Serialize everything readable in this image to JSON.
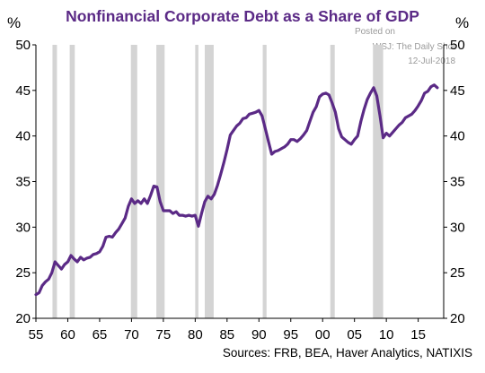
{
  "title": "Nonfinancial Corporate Debt  as a Share of GDP",
  "unit_left": "%",
  "unit_right": "%",
  "watermark": {
    "posted_on": "Posted on",
    "site": "WSJ: The Daily Shot",
    "date": "12-Jul-2018"
  },
  "source": "Sources: FRB, BEA, Haver Analytics, NATIXIS",
  "colors": {
    "line": "#5b2a86",
    "recession": "#d4d4d4",
    "title": "#5b2a86"
  },
  "chart_data": {
    "type": "line",
    "title": "Nonfinancial Corporate Debt  as a Share of GDP",
    "xlabel": "",
    "ylabel": "%",
    "xlim": [
      1955,
      2019
    ],
    "ylim": [
      20,
      50
    ],
    "x_ticks": [
      1955,
      1960,
      1965,
      1970,
      1975,
      1980,
      1985,
      1990,
      1995,
      2000,
      2005,
      2010,
      2015
    ],
    "x_tick_labels": [
      "55",
      "60",
      "65",
      "70",
      "75",
      "80",
      "85",
      "90",
      "95",
      "00",
      "05",
      "10",
      "15"
    ],
    "y_ticks": [
      20,
      25,
      30,
      35,
      40,
      45,
      50
    ],
    "y_tick_labels_left": [
      "20",
      "25",
      "30",
      "35",
      "40",
      "45",
      "50"
    ],
    "y_tick_labels_right": [
      "20",
      "25",
      "30",
      "35",
      "40",
      "45",
      "50"
    ],
    "grid": false,
    "recessions": [
      [
        1957.6,
        1958.3
      ],
      [
        1960.3,
        1961.1
      ],
      [
        1969.9,
        1970.9
      ],
      [
        1973.9,
        1975.2
      ],
      [
        1980.0,
        1980.5
      ],
      [
        1981.5,
        1982.9
      ],
      [
        1990.6,
        1991.2
      ],
      [
        2001.2,
        2001.9
      ],
      [
        2007.9,
        2009.5
      ]
    ],
    "series": [
      {
        "x": [
          1955.0,
          1955.5,
          1956.0,
          1956.5,
          1957.0,
          1957.5,
          1958.0,
          1958.5,
          1959.0,
          1959.5,
          1960.0,
          1960.5,
          1961.0,
          1961.5,
          1962.0,
          1962.5,
          1963.0,
          1963.5,
          1964.0,
          1964.5,
          1965.0,
          1965.5,
          1966.0,
          1966.5,
          1967.0,
          1967.5,
          1968.0,
          1968.5,
          1969.0,
          1969.5,
          1970.0,
          1970.5,
          1971.0,
          1971.5,
          1972.0,
          1972.5,
          1973.0,
          1973.5,
          1974.0,
          1974.5,
          1975.0,
          1975.5,
          1976.0,
          1976.5,
          1977.0,
          1977.5,
          1978.0,
          1978.5,
          1979.0,
          1979.5,
          1980.0,
          1980.5,
          1981.0,
          1981.5,
          1982.0,
          1982.5,
          1983.0,
          1983.5,
          1984.0,
          1984.5,
          1985.0,
          1985.5,
          1986.0,
          1986.5,
          1987.0,
          1987.5,
          1988.0,
          1988.5,
          1989.0,
          1989.5,
          1990.0,
          1990.5,
          1991.0,
          1991.5,
          1992.0,
          1992.5,
          1993.0,
          1993.5,
          1994.0,
          1994.5,
          1995.0,
          1995.5,
          1996.0,
          1996.5,
          1997.0,
          1997.5,
          1998.0,
          1998.5,
          1999.0,
          1999.5,
          2000.0,
          2000.5,
          2001.0,
          2001.5,
          2002.0,
          2002.5,
          2003.0,
          2003.5,
          2004.0,
          2004.5,
          2005.0,
          2005.5,
          2006.0,
          2006.5,
          2007.0,
          2007.5,
          2008.0,
          2008.5,
          2009.0,
          2009.5,
          2010.0,
          2010.5,
          2011.0,
          2011.5,
          2012.0,
          2012.5,
          2013.0,
          2013.5,
          2014.0,
          2014.5,
          2015.0,
          2015.5,
          2016.0,
          2016.5,
          2017.0,
          2017.5,
          2018.0
        ],
        "y": [
          22.6,
          22.8,
          23.6,
          24.0,
          24.3,
          25.0,
          26.2,
          25.8,
          25.4,
          25.9,
          26.2,
          26.9,
          26.5,
          26.2,
          26.7,
          26.4,
          26.6,
          26.7,
          27.0,
          27.1,
          27.3,
          27.9,
          28.9,
          29.0,
          28.9,
          29.4,
          29.8,
          30.4,
          31.0,
          32.3,
          33.1,
          32.6,
          32.9,
          32.6,
          33.1,
          32.6,
          33.5,
          34.5,
          34.4,
          32.8,
          31.8,
          31.8,
          31.8,
          31.5,
          31.7,
          31.3,
          31.3,
          31.2,
          31.3,
          31.2,
          31.3,
          30.1,
          31.5,
          32.8,
          33.4,
          33.1,
          33.6,
          34.6,
          35.8,
          37.1,
          38.5,
          40.1,
          40.6,
          41.1,
          41.4,
          41.9,
          42.0,
          42.4,
          42.5,
          42.6,
          42.8,
          42.2,
          40.8,
          39.4,
          38.0,
          38.3,
          38.4,
          38.6,
          38.8,
          39.1,
          39.6,
          39.6,
          39.4,
          39.7,
          40.1,
          40.6,
          41.6,
          42.6,
          43.2,
          44.3,
          44.6,
          44.7,
          44.5,
          43.6,
          42.6,
          40.8,
          39.9,
          39.6,
          39.3,
          39.1,
          39.6,
          40.0,
          41.6,
          42.9,
          44.0,
          44.7,
          45.3,
          44.4,
          42.2,
          39.8,
          40.3,
          40.0,
          40.4,
          40.8,
          41.2,
          41.5,
          42.0,
          42.2,
          42.4,
          42.8,
          43.3,
          43.9,
          44.7,
          44.9,
          45.4,
          45.6,
          45.3
        ]
      }
    ]
  }
}
